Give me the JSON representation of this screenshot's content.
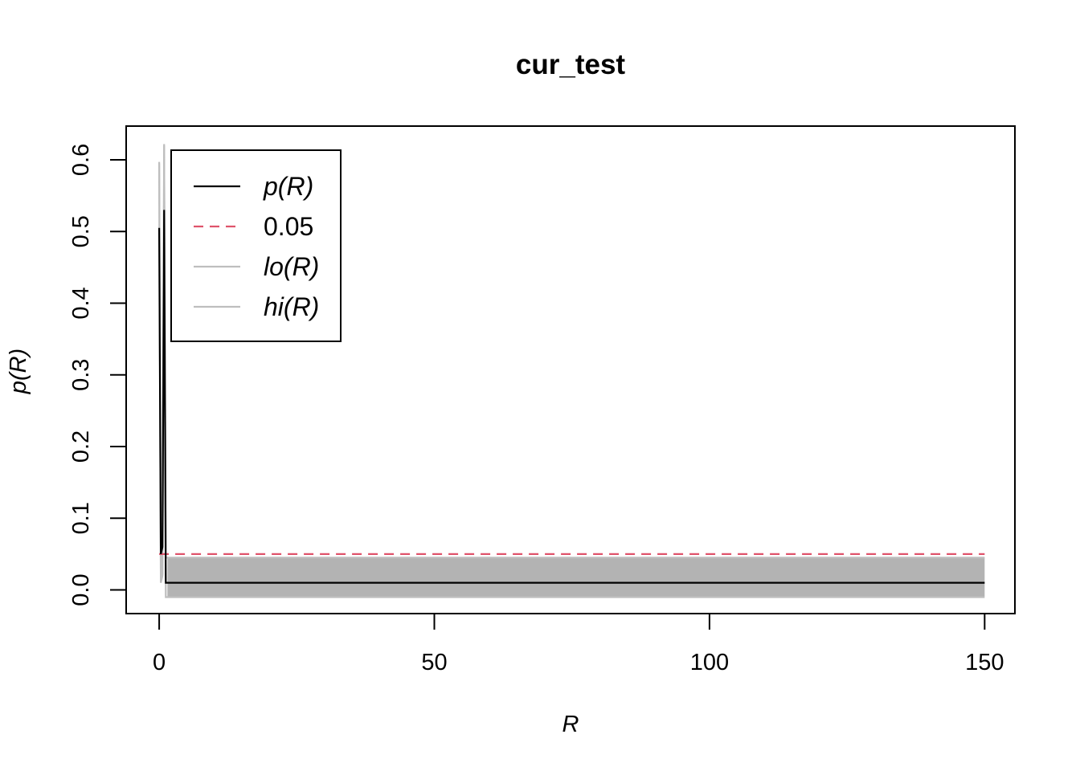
{
  "chart_data": {
    "type": "line",
    "title": "cur_test",
    "xlabel": "R",
    "ylabel": "p(R)",
    "xlim": [
      -6,
      155.5
    ],
    "ylim": [
      -0.033,
      0.647
    ],
    "x_ticks": [
      0,
      50,
      100,
      150
    ],
    "y_ticks": [
      0.0,
      0.1,
      0.2,
      0.3,
      0.4,
      0.5,
      0.6
    ],
    "x_tick_labels": [
      "0",
      "50",
      "100",
      "150"
    ],
    "y_tick_labels": [
      "0.0",
      "0.1",
      "0.2",
      "0.3",
      "0.4",
      "0.5",
      "0.6"
    ],
    "grid": false,
    "legend_position": "top-left",
    "legend": [
      {
        "label": "p(R)",
        "color": "#000000",
        "dash": "solid"
      },
      {
        "label": "0.05",
        "color": "#DF536B",
        "dash": "dashed"
      },
      {
        "label": "lo(R)",
        "color": "#BEBEBE",
        "dash": "solid"
      },
      {
        "label": "hi(R)",
        "color": "#BEBEBE",
        "dash": "solid"
      }
    ],
    "series": [
      {
        "name": "p(R)",
        "color": "#000000",
        "x": [
          0,
          0.3,
          0.6,
          0.9,
          1.2,
          1.5,
          150
        ],
        "y": [
          0.505,
          0.05,
          0.06,
          0.53,
          0.01,
          0.01,
          0.01
        ]
      },
      {
        "name": "0.05",
        "color": "#DF536B",
        "x": [
          0,
          150
        ],
        "y": [
          0.05,
          0.05
        ]
      },
      {
        "name": "lo(R)",
        "color": "#BEBEBE",
        "x": [
          0,
          0.3,
          0.6,
          0.9,
          1.2,
          1.5,
          150
        ],
        "y": [
          0.595,
          0.01,
          0.02,
          0.62,
          -0.01,
          -0.01,
          -0.01
        ]
      },
      {
        "name": "hi(R)",
        "color": "#BEBEBE",
        "x": [
          0,
          0.3,
          0.6,
          0.9,
          1.2,
          1.5,
          150
        ],
        "y": [
          0.597,
          0.012,
          0.022,
          0.622,
          0.045,
          0.045,
          0.045
        ]
      }
    ],
    "band": {
      "color": "#B3B3B3",
      "x": [
        1.5,
        150
      ],
      "lo": [
        -0.009,
        -0.009
      ],
      "hi": [
        0.045,
        0.045
      ]
    }
  }
}
